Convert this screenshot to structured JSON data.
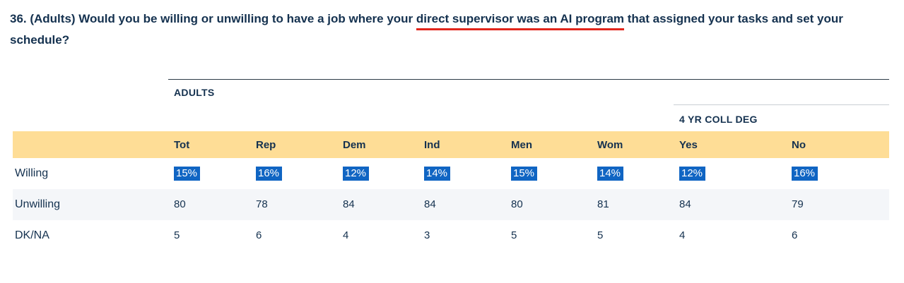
{
  "question": {
    "prefix": "36. (Adults) Would you be willing or unwilling to have a job where your ",
    "underlined": "direct supervisor was an AI program",
    "suffix": " that assigned your tasks and set your schedule?"
  },
  "table": {
    "group_headers": {
      "adults": "ADULTS",
      "coll_deg": "4 YR COLL DEG"
    },
    "columns": [
      "Tot",
      "Rep",
      "Dem",
      "Ind",
      "Men",
      "Wom",
      "Yes",
      "No"
    ],
    "rows": [
      {
        "label": "Willing",
        "highlighted": true,
        "values": [
          "15%",
          "16%",
          "12%",
          "14%",
          "15%",
          "14%",
          "12%",
          "16%"
        ]
      },
      {
        "label": "Unwilling",
        "highlighted": false,
        "values": [
          "80",
          "78",
          "84",
          "84",
          "80",
          "81",
          "84",
          "79"
        ]
      },
      {
        "label": "DK/NA",
        "highlighted": false,
        "values": [
          "5",
          "6",
          "4",
          "3",
          "5",
          "5",
          "4",
          "6"
        ]
      }
    ]
  },
  "colors": {
    "text_navy": "#14314f",
    "accent_red_underline": "#e1251b",
    "header_band_yellow": "#fedd96",
    "alt_row_gray": "#f4f6f9",
    "selection_blue": "#1065c3",
    "rule_dark": "#2c3a46",
    "rule_light": "#c9ced3"
  }
}
